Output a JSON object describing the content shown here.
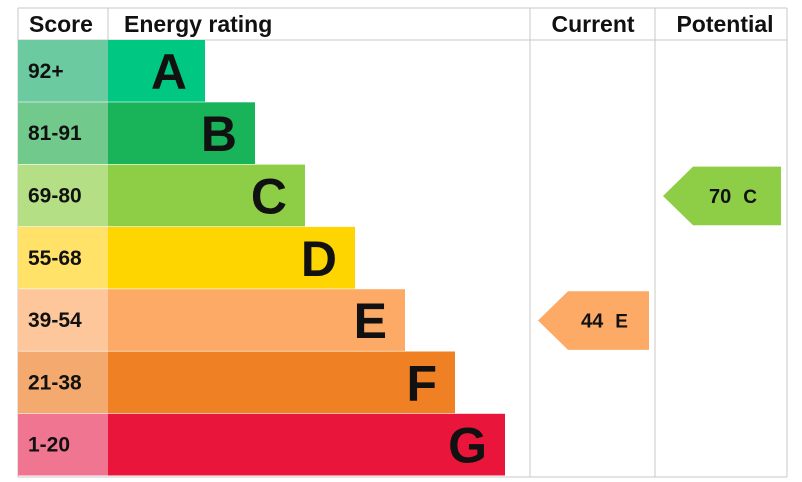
{
  "headers": {
    "score": "Score",
    "rating": "Energy rating",
    "current": "Current",
    "potential": "Potential"
  },
  "chart_data": {
    "type": "bar",
    "bands": [
      {
        "letter": "A",
        "range": "92+",
        "color": "#00c781",
        "score_color": "#6ccaa0"
      },
      {
        "letter": "B",
        "range": "81-91",
        "color": "#19b459",
        "score_color": "#72c98c"
      },
      {
        "letter": "C",
        "range": "69-80",
        "color": "#8dce46",
        "score_color": "#b5df85"
      },
      {
        "letter": "D",
        "range": "55-68",
        "color": "#ffd500",
        "score_color": "#ffe267"
      },
      {
        "letter": "E",
        "range": "39-54",
        "color": "#fcaa65",
        "score_color": "#fdc79b"
      },
      {
        "letter": "F",
        "range": "21-38",
        "color": "#ef8023",
        "score_color": "#f4aa6e"
      },
      {
        "letter": "G",
        "range": "1-20",
        "color": "#e9153b",
        "score_color": "#f07591"
      }
    ],
    "current": {
      "value": 44,
      "letter": "E",
      "color": "#fcaa65"
    },
    "potential": {
      "value": 70,
      "letter": "C",
      "color": "#8dce46"
    }
  }
}
